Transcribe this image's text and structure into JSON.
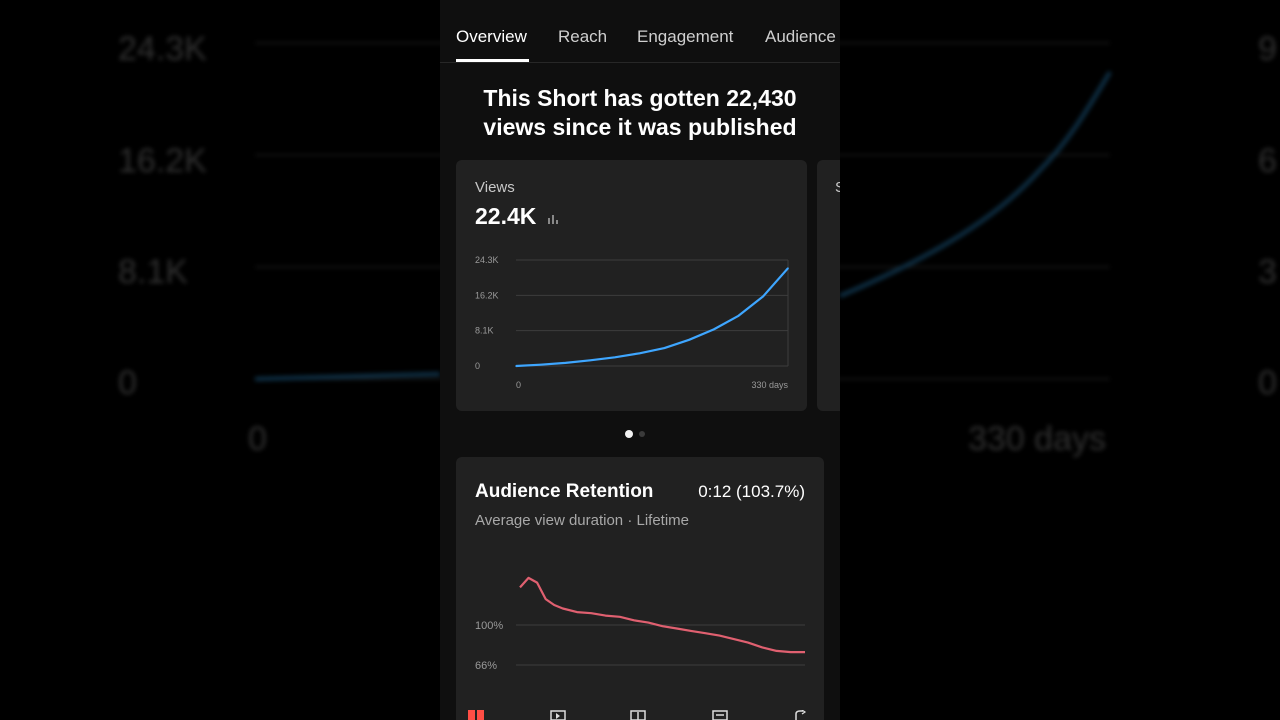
{
  "tabs": [
    {
      "label": "Overview",
      "active": true
    },
    {
      "label": "Reach",
      "active": false
    },
    {
      "label": "Engagement",
      "active": false
    },
    {
      "label": "Audience",
      "active": false
    }
  ],
  "headline": {
    "line1": "This Short has gotten 22,430",
    "line2": "views since it was published"
  },
  "views_card": {
    "label": "Views",
    "value": "22.4K",
    "peek_label": "S"
  },
  "carousel": {
    "pages": 2,
    "active_index": 0
  },
  "retention_card": {
    "title": "Audience Retention",
    "value": "0:12 (103.7%)",
    "subtitle": "Average view duration · Lifetime"
  },
  "background": {
    "y_labels": [
      "24.3K",
      "16.2K",
      "8.1K",
      "0"
    ],
    "right_labels": [
      "9",
      "6",
      "3",
      "0"
    ],
    "x_labels": [
      "0",
      "330 days"
    ]
  },
  "bottom_nav": {
    "icons": [
      "dashboard-icon",
      "content-icon",
      "analytics-icon",
      "comments-icon",
      "more-icon"
    ]
  },
  "colors": {
    "views_line": "#3ea6ff",
    "retention_line": "#e06070",
    "active_tab": "#ffffff",
    "nav_accent": "#ff4e45"
  },
  "chart_data": [
    {
      "type": "line",
      "title": "Views",
      "x": [
        0,
        30,
        60,
        90,
        120,
        150,
        180,
        210,
        240,
        270,
        300,
        330
      ],
      "values": [
        0,
        300,
        700,
        1300,
        2000,
        2900,
        4100,
        6000,
        8400,
        11500,
        16000,
        22430
      ],
      "ylim": [
        0,
        24300
      ],
      "yticks": [
        "24.3K",
        "16.2K",
        "8.1K",
        "0"
      ],
      "xtick_labels": [
        "0",
        "330 days"
      ],
      "grid": true
    },
    {
      "type": "line",
      "title": "Audience Retention",
      "x": [
        0,
        0.03,
        0.06,
        0.09,
        0.12,
        0.15,
        0.2,
        0.25,
        0.3,
        0.35,
        0.4,
        0.45,
        0.5,
        0.55,
        0.6,
        0.65,
        0.7,
        0.75,
        0.8,
        0.85,
        0.9,
        0.95,
        1.0
      ],
      "values": [
        132,
        140,
        136,
        122,
        117,
        114,
        111,
        110,
        108,
        107,
        104,
        102,
        99,
        97,
        95,
        93,
        91,
        88,
        85,
        81,
        78,
        77,
        77
      ],
      "yticks": [
        "100%",
        "66%"
      ],
      "grid": true
    }
  ]
}
